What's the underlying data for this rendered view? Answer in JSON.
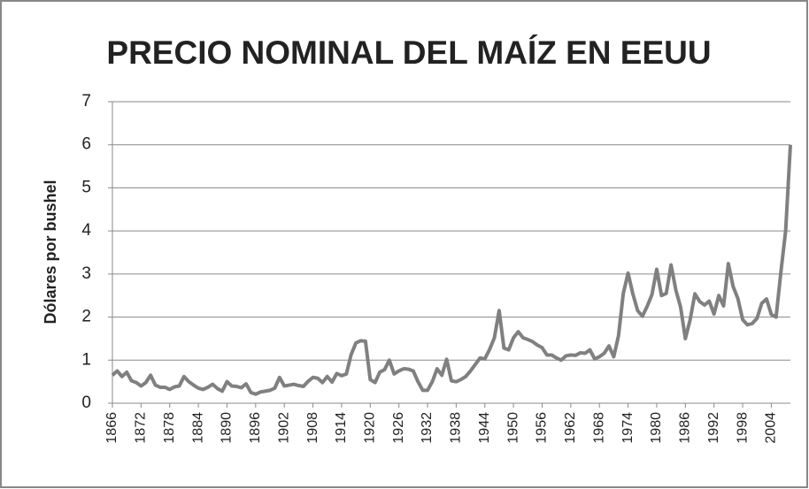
{
  "chart_data": {
    "type": "line",
    "title": "PRECIO NOMINAL DEL MAÍZ EN EEUU",
    "y_label": "Dólares por bushel",
    "x": [
      1866,
      1867,
      1868,
      1869,
      1870,
      1871,
      1872,
      1873,
      1874,
      1875,
      1876,
      1877,
      1878,
      1879,
      1880,
      1881,
      1882,
      1883,
      1884,
      1885,
      1886,
      1887,
      1888,
      1889,
      1890,
      1891,
      1892,
      1893,
      1894,
      1895,
      1896,
      1897,
      1898,
      1899,
      1900,
      1901,
      1902,
      1903,
      1904,
      1905,
      1906,
      1907,
      1908,
      1909,
      1910,
      1911,
      1912,
      1913,
      1914,
      1915,
      1916,
      1917,
      1918,
      1919,
      1920,
      1921,
      1922,
      1923,
      1924,
      1925,
      1926,
      1927,
      1928,
      1929,
      1930,
      1931,
      1932,
      1933,
      1934,
      1935,
      1936,
      1937,
      1938,
      1939,
      1940,
      1941,
      1942,
      1943,
      1944,
      1945,
      1946,
      1947,
      1948,
      1949,
      1950,
      1951,
      1952,
      1953,
      1954,
      1955,
      1956,
      1957,
      1958,
      1959,
      1960,
      1961,
      1962,
      1963,
      1964,
      1965,
      1966,
      1967,
      1968,
      1969,
      1970,
      1971,
      1972,
      1973,
      1974,
      1975,
      1976,
      1977,
      1978,
      1979,
      1980,
      1981,
      1982,
      1983,
      1984,
      1985,
      1986,
      1987,
      1988,
      1989,
      1990,
      1991,
      1992,
      1993,
      1994,
      1995,
      1996,
      1997,
      1998,
      1999,
      2000,
      2001,
      2002,
      2003,
      2004,
      2005,
      2006,
      2007,
      2008
    ],
    "series": [
      {
        "color": "#808080",
        "values": [
          0.65,
          0.75,
          0.62,
          0.72,
          0.52,
          0.48,
          0.4,
          0.48,
          0.65,
          0.42,
          0.37,
          0.37,
          0.32,
          0.38,
          0.4,
          0.62,
          0.5,
          0.42,
          0.35,
          0.32,
          0.37,
          0.44,
          0.34,
          0.28,
          0.5,
          0.4,
          0.39,
          0.36,
          0.45,
          0.25,
          0.21,
          0.26,
          0.28,
          0.3,
          0.35,
          0.6,
          0.4,
          0.42,
          0.44,
          0.41,
          0.39,
          0.51,
          0.6,
          0.58,
          0.48,
          0.62,
          0.49,
          0.69,
          0.64,
          0.68,
          1.13,
          1.4,
          1.45,
          1.44,
          0.55,
          0.48,
          0.72,
          0.78,
          1.0,
          0.68,
          0.75,
          0.8,
          0.79,
          0.75,
          0.5,
          0.3,
          0.3,
          0.5,
          0.8,
          0.65,
          1.02,
          0.52,
          0.5,
          0.55,
          0.62,
          0.75,
          0.9,
          1.05,
          1.03,
          1.25,
          1.52,
          2.15,
          1.28,
          1.24,
          1.52,
          1.66,
          1.52,
          1.48,
          1.43,
          1.35,
          1.29,
          1.12,
          1.12,
          1.05,
          1.0,
          1.1,
          1.12,
          1.11,
          1.17,
          1.16,
          1.24,
          1.03,
          1.08,
          1.16,
          1.33,
          1.08,
          1.57,
          2.55,
          3.02,
          2.54,
          2.15,
          2.02,
          2.25,
          2.52,
          3.11,
          2.5,
          2.55,
          3.21,
          2.63,
          2.23,
          1.5,
          1.94,
          2.54,
          2.36,
          2.28,
          2.37,
          2.07,
          2.5,
          2.26,
          3.24,
          2.71,
          2.43,
          1.94,
          1.82,
          1.85,
          1.97,
          2.32,
          2.42,
          2.06,
          2.0,
          3.04,
          4.0,
          6.0
        ]
      }
    ],
    "xlim": [
      1866,
      2008
    ],
    "xticks": [
      1866,
      1872,
      1878,
      1884,
      1890,
      1896,
      1902,
      1908,
      1914,
      1920,
      1926,
      1932,
      1938,
      1944,
      1950,
      1956,
      1962,
      1968,
      1974,
      1980,
      1986,
      1992,
      1998,
      2004
    ],
    "ylim": [
      0,
      7
    ],
    "yticks": [
      0,
      1,
      2,
      3,
      4,
      5,
      6,
      7
    ],
    "grid": true
  }
}
